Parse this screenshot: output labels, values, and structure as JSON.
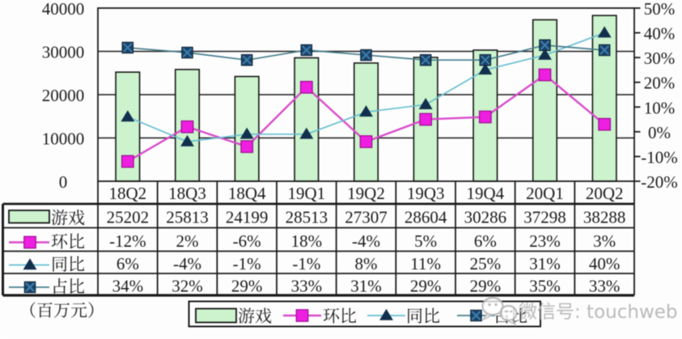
{
  "figure": {
    "unit_note": "（百万元）",
    "watermark": {
      "icon": "wechat-icon",
      "text": "微信号: touchweb"
    }
  },
  "chart_data": {
    "type": "combo-bar-line",
    "title": "",
    "categories": [
      "18Q2",
      "18Q3",
      "18Q4",
      "19Q1",
      "19Q2",
      "19Q3",
      "19Q4",
      "20Q1",
      "20Q2"
    ],
    "series": [
      {
        "id": "games",
        "name": "游戏",
        "type": "bar",
        "axis": "left",
        "values": [
          25202,
          25813,
          24199,
          28513,
          27307,
          28604,
          30286,
          37298,
          38288
        ],
        "fill": "#CCF3CD",
        "stroke": "#161616"
      },
      {
        "id": "qoq",
        "name": "环比",
        "type": "line",
        "axis": "right",
        "marker": "square",
        "values_pct": [
          -12,
          2,
          -6,
          18,
          -4,
          5,
          6,
          23,
          3
        ],
        "labels": [
          "-12%",
          "2%",
          "-6%",
          "18%",
          "-4%",
          "5%",
          "6%",
          "23%",
          "3%"
        ],
        "line_color": "#D84BCB",
        "marker_fill": "#EE1FE0",
        "marker_stroke": "#9A0D90"
      },
      {
        "id": "yoy",
        "name": "同比",
        "type": "line",
        "axis": "right",
        "marker": "triangle",
        "values_pct": [
          6,
          -4,
          -1,
          -1,
          8,
          11,
          25,
          31,
          40
        ],
        "labels": [
          "6%",
          "-4%",
          "-1%",
          "-1%",
          "8%",
          "11%",
          "25%",
          "31%",
          "40%"
        ],
        "line_color": "#66BED2",
        "marker_fill": "#12304E",
        "marker_stroke": "#0B2038"
      },
      {
        "id": "share",
        "name": "占比",
        "type": "line",
        "axis": "right",
        "marker": "x-square",
        "values_pct": [
          34,
          32,
          29,
          33,
          31,
          29,
          29,
          35,
          33
        ],
        "labels": [
          "34%",
          "32%",
          "29%",
          "33%",
          "31%",
          "29%",
          "29%",
          "35%",
          "33%"
        ],
        "line_color": "#447C8C",
        "marker_fill": "#1B4369",
        "marker_stroke": "#0D2234",
        "marker_x_color": "#3E7FAE"
      }
    ],
    "left_axis": {
      "min": 0,
      "max": 40000,
      "step": 10000,
      "tick_labels": [
        "40000",
        "30000",
        "20000",
        "10000",
        "0"
      ]
    },
    "right_axis": {
      "min": -20,
      "max": 50,
      "step": 10,
      "tick_labels": [
        "50%",
        "40%",
        "30%",
        "20%",
        "10%",
        "0%",
        "-10%",
        "-20%"
      ]
    },
    "gridlines": true,
    "legend_position": "bottom",
    "legend": [
      "游戏",
      "环比",
      "同比",
      "占比"
    ]
  },
  "table": {
    "header": [
      "18Q2",
      "18Q3",
      "18Q4",
      "19Q1",
      "19Q2",
      "19Q3",
      "19Q4",
      "20Q1",
      "20Q2"
    ],
    "rows": [
      {
        "label": "游戏",
        "cells": [
          "25202",
          "25813",
          "24199",
          "28513",
          "27307",
          "28604",
          "30286",
          "37298",
          "38288"
        ]
      },
      {
        "label": "环比",
        "cells": [
          "-12%",
          "2%",
          "-6%",
          "18%",
          "-4%",
          "5%",
          "6%",
          "23%",
          "3%"
        ]
      },
      {
        "label": "同比",
        "cells": [
          "6%",
          "-4%",
          "-1%",
          "-1%",
          "8%",
          "11%",
          "25%",
          "31%",
          "40%"
        ]
      },
      {
        "label": "占比",
        "cells": [
          "34%",
          "32%",
          "29%",
          "33%",
          "31%",
          "29%",
          "29%",
          "35%",
          "33%"
        ]
      }
    ]
  }
}
